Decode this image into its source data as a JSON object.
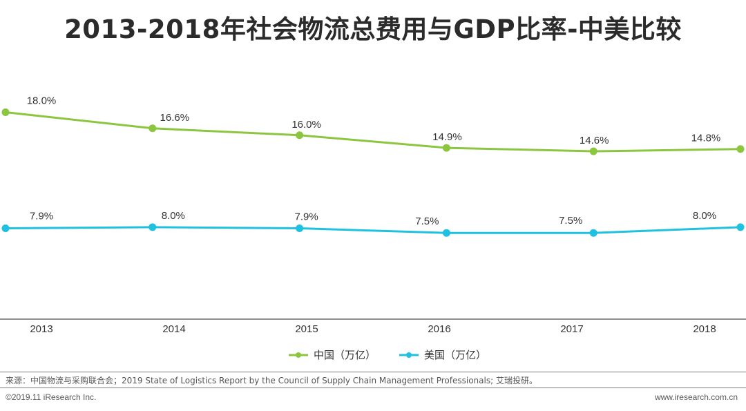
{
  "title": "2013-2018年社会物流总费用与GDP比率-中美比较",
  "chart_data": {
    "type": "line",
    "title": "2013-2018年社会物流总费用与GDP比率-中美比较",
    "categories": [
      "2013",
      "2014",
      "2015",
      "2016",
      "2017",
      "2018"
    ],
    "series": [
      {
        "name": "中国（万亿）",
        "color": "#8cc63f",
        "values": [
          18.0,
          16.6,
          16.0,
          14.9,
          14.6,
          14.8
        ],
        "labels": [
          "18.0%",
          "16.6%",
          "16.0%",
          "14.9%",
          "14.6%",
          "14.8%"
        ]
      },
      {
        "name": "美国（万亿）",
        "color": "#1fc1e0",
        "values": [
          7.9,
          8.0,
          7.9,
          7.5,
          7.5,
          8.0
        ],
        "labels": [
          "7.9%",
          "8.0%",
          "7.9%",
          "7.5%",
          "7.5%",
          "8.0%"
        ]
      }
    ],
    "unit": "%",
    "ylim": [
      0,
      25
    ],
    "grid": false,
    "legend_position": "bottom-center"
  },
  "footer": {
    "source": "来源：中国物流与采购联合会；2019 State of Logistics Report by the Council of Supply  Chain Management Professionals; 艾瑞投研。",
    "copyright": "©2019.11 iResearch Inc.",
    "website": "www.iresearch.com.cn"
  }
}
